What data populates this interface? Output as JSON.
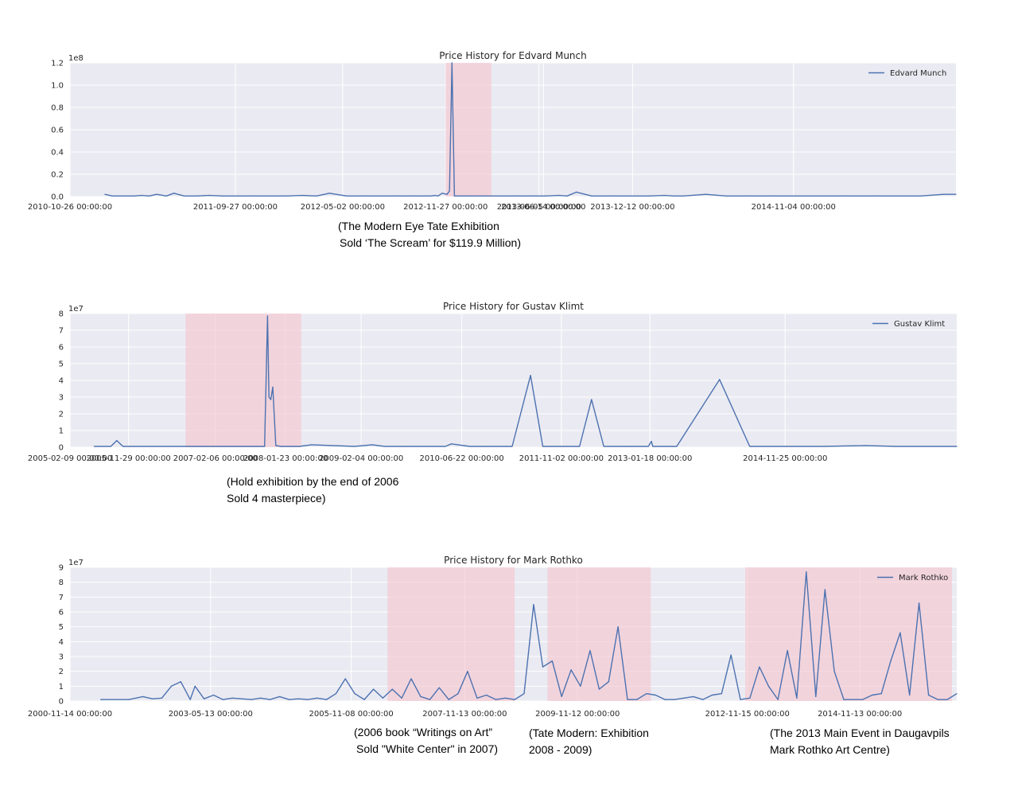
{
  "chart_data": [
    {
      "type": "line",
      "title": "Price History for Edvard Munch",
      "legend": "Edvard Munch",
      "legend_position": "top-right",
      "grid": true,
      "line_color": "#4c72b0",
      "highlight_color": "#f4c6d0",
      "ylim": [
        0,
        1.2
      ],
      "y_multiplier": "1e8",
      "yticks": [
        "0.0",
        "0.2",
        "0.4",
        "0.6",
        "0.8",
        "1.0",
        "1.2"
      ],
      "xlim": [
        "2010-10-26",
        "2015-09-30"
      ],
      "xticks": [
        {
          "date": "2010-10-26",
          "label": "2010-10-26 00:00:00"
        },
        {
          "date": "2011-09-27",
          "label": "2011-09-27 00:00:00"
        },
        {
          "date": "2012-05-02",
          "label": "2012-05-02 00:00:00"
        },
        {
          "date": "2012-11-27",
          "label": "2012-11-27 00:00:00"
        },
        {
          "date": "2013-06-05",
          "label": "2013-06-05 00:00:00"
        },
        {
          "date": "2013-06-14",
          "label": "2013-06-14 00:00:00"
        },
        {
          "date": "2013-12-12",
          "label": "2013-12-12 00:00:00"
        },
        {
          "date": "2014-11-04",
          "label": "2014-11-04 00:00:00"
        }
      ],
      "highlights": [
        [
          "2012-11-27",
          "2013-02-28"
        ]
      ],
      "series": [
        {
          "name": "Edvard Munch",
          "x": [
            "2011-01-05",
            "2011-01-20",
            "2011-02-10",
            "2011-03-05",
            "2011-03-20",
            "2011-04-05",
            "2011-04-20",
            "2011-05-10",
            "2011-05-25",
            "2011-06-15",
            "2011-07-10",
            "2011-08-05",
            "2011-09-01",
            "2011-10-01",
            "2011-11-05",
            "2011-12-10",
            "2012-01-10",
            "2012-02-10",
            "2012-03-10",
            "2012-04-05",
            "2012-05-10",
            "2012-06-15",
            "2012-07-20",
            "2012-08-20",
            "2012-09-20",
            "2012-10-15",
            "2012-10-30",
            "2012-11-05",
            "2012-11-12",
            "2012-11-20",
            "2012-11-30",
            "2012-12-05",
            "2012-12-10",
            "2012-12-15",
            "2012-12-20",
            "2013-01-10",
            "2013-02-10",
            "2013-03-15",
            "2013-04-15",
            "2013-05-20",
            "2013-06-20",
            "2013-07-15",
            "2013-08-01",
            "2013-08-20",
            "2013-09-20",
            "2013-10-25",
            "2013-11-25",
            "2014-01-15",
            "2014-02-15",
            "2014-03-05",
            "2014-03-25",
            "2014-05-10",
            "2014-06-20",
            "2014-08-10",
            "2014-09-20",
            "2014-11-01",
            "2014-12-20",
            "2015-02-10",
            "2015-04-20",
            "2015-06-10",
            "2015-07-20",
            "2015-09-05",
            "2015-09-30"
          ],
          "y": [
            0.02,
            0.005,
            0.005,
            0.005,
            0.01,
            0.005,
            0.02,
            0.005,
            0.03,
            0.005,
            0.005,
            0.01,
            0.005,
            0.005,
            0.005,
            0.005,
            0.005,
            0.01,
            0.005,
            0.03,
            0.005,
            0.005,
            0.005,
            0.005,
            0.005,
            0.005,
            0.005,
            0.01,
            0.005,
            0.03,
            0.02,
            0.05,
            1.2,
            0.005,
            0.005,
            0.005,
            0.005,
            0.005,
            0.005,
            0.005,
            0.005,
            0.01,
            0.005,
            0.04,
            0.005,
            0.005,
            0.005,
            0.005,
            0.01,
            0.005,
            0.005,
            0.02,
            0.005,
            0.005,
            0.005,
            0.005,
            0.005,
            0.005,
            0.005,
            0.005,
            0.005,
            0.02,
            0.02
          ]
        }
      ]
    },
    {
      "type": "line",
      "title": "Price History for Gustav Klimt",
      "legend": "Gustav Klimt",
      "legend_position": "top-right",
      "grid": true,
      "line_color": "#4c72b0",
      "highlight_color": "#f4c6d0",
      "ylim": [
        0,
        8
      ],
      "y_multiplier": "1e7",
      "yticks": [
        "0",
        "1",
        "2",
        "3",
        "4",
        "5",
        "6",
        "7",
        "8"
      ],
      "xlim": [
        "2005-02-09",
        "2017-04-01"
      ],
      "xticks": [
        {
          "date": "2005-02-09",
          "label": "2005-02-09 00:00:00"
        },
        {
          "date": "2005-11-29",
          "label": "2005-11-29 00:00:00"
        },
        {
          "date": "2007-02-06",
          "label": "2007-02-06 00:00:00"
        },
        {
          "date": "2008-01-23",
          "label": "2008-01-23 00:00:00"
        },
        {
          "date": "2009-02-04",
          "label": "2009-02-04 00:00:00"
        },
        {
          "date": "2010-06-22",
          "label": "2010-06-22 00:00:00"
        },
        {
          "date": "2011-11-02",
          "label": "2011-11-02 00:00:00"
        },
        {
          "date": "2013-01-18",
          "label": "2013-01-18 00:00:00"
        },
        {
          "date": "2014-11-25",
          "label": "2014-11-25 00:00:00"
        }
      ],
      "highlights": [
        [
          "2006-09-10",
          "2008-04-10"
        ]
      ],
      "series": [
        {
          "name": "Gustav Klimt",
          "x": [
            "2005-06-10",
            "2005-09-01",
            "2005-10-01",
            "2005-11-01",
            "2006-02-01",
            "2006-06-01",
            "2006-10-01",
            "2007-02-01",
            "2007-06-01",
            "2007-09-01",
            "2007-10-10",
            "2007-10-25",
            "2007-11-01",
            "2007-11-10",
            "2007-11-20",
            "2007-12-05",
            "2008-01-01",
            "2008-02-01",
            "2008-04-01",
            "2008-06-01",
            "2009-01-01",
            "2009-04-01",
            "2009-06-01",
            "2009-09-01",
            "2010-01-01",
            "2010-04-01",
            "2010-05-01",
            "2010-08-01",
            "2010-11-01",
            "2011-03-01",
            "2011-06-01",
            "2011-08-01",
            "2011-10-01",
            "2012-02-01",
            "2012-04-01",
            "2012-06-01",
            "2012-10-01",
            "2013-01-10",
            "2013-01-25",
            "2013-02-01",
            "2013-06-01",
            "2014-01-01",
            "2014-06-01",
            "2015-01-01",
            "2015-06-01",
            "2016-01-01",
            "2016-06-01",
            "2017-04-01"
          ],
          "y": [
            0.05,
            0.05,
            0.4,
            0.05,
            0.05,
            0.05,
            0.05,
            0.05,
            0.05,
            0.05,
            0.05,
            7.85,
            3.0,
            2.85,
            3.6,
            0.1,
            0.05,
            0.05,
            0.05,
            0.15,
            0.05,
            0.15,
            0.05,
            0.05,
            0.05,
            0.05,
            0.2,
            0.05,
            0.05,
            0.05,
            4.3,
            0.05,
            0.05,
            0.05,
            2.85,
            0.05,
            0.05,
            0.05,
            0.35,
            0.05,
            0.05,
            4.05,
            0.05,
            0.05,
            0.05,
            0.1,
            0.05,
            0.05
          ]
        }
      ]
    },
    {
      "type": "line",
      "title": "Price History for Mark Rothko",
      "legend": "Mark Rothko",
      "legend_position": "top-right",
      "grid": true,
      "line_color": "#4c72b0",
      "highlight_color": "#f4c6d0",
      "ylim": [
        0,
        9
      ],
      "y_multiplier": "1e7",
      "yticks": [
        "0",
        "1",
        "2",
        "3",
        "4",
        "5",
        "6",
        "7",
        "8",
        "9"
      ],
      "xlim": [
        "2000-11-14",
        "2016-08-01"
      ],
      "xticks": [
        {
          "date": "2000-11-14",
          "label": "2000-11-14 00:00:00"
        },
        {
          "date": "2003-05-13",
          "label": "2003-05-13 00:00:00"
        },
        {
          "date": "2005-11-08",
          "label": "2005-11-08 00:00:00"
        },
        {
          "date": "2007-11-13",
          "label": "2007-11-13 00:00:00"
        },
        {
          "date": "2009-11-12",
          "label": "2009-11-12 00:00:00"
        },
        {
          "date": "2012-11-15",
          "label": "2012-11-15 00:00:00"
        },
        {
          "date": "2014-11-13",
          "label": "2014-11-13 00:00:00"
        }
      ],
      "highlights": [
        [
          "2006-07-01",
          "2008-10-01"
        ],
        [
          "2009-05-01",
          "2011-03-01"
        ],
        [
          "2012-11-01",
          "2016-07-01"
        ]
      ],
      "series": [
        {
          "name": "Mark Rothko",
          "x": [
            "2001-06-01",
            "2001-12-01",
            "2002-03-01",
            "2002-05-01",
            "2002-07-01",
            "2002-09-01",
            "2002-11-01",
            "2003-01-01",
            "2003-02-01",
            "2003-04-01",
            "2003-06-01",
            "2003-08-01",
            "2003-10-01",
            "2003-12-01",
            "2004-02-01",
            "2004-04-01",
            "2004-06-01",
            "2004-08-01",
            "2004-10-01",
            "2004-12-01",
            "2005-02-01",
            "2005-04-01",
            "2005-06-01",
            "2005-08-01",
            "2005-10-01",
            "2005-12-01",
            "2006-02-01",
            "2006-04-01",
            "2006-06-01",
            "2006-08-01",
            "2006-10-01",
            "2006-12-01",
            "2007-02-01",
            "2007-04-01",
            "2007-06-01",
            "2007-08-01",
            "2007-10-01",
            "2007-12-01",
            "2008-02-01",
            "2008-04-01",
            "2008-06-01",
            "2008-08-01",
            "2008-10-01",
            "2008-12-01",
            "2009-02-01",
            "2009-04-01",
            "2009-06-01",
            "2009-08-01",
            "2009-10-01",
            "2009-12-01",
            "2010-02-01",
            "2010-04-01",
            "2010-06-01",
            "2010-08-01",
            "2010-10-01",
            "2010-12-01",
            "2011-02-01",
            "2011-04-01",
            "2011-06-01",
            "2011-08-01",
            "2011-10-01",
            "2011-12-01",
            "2012-02-01",
            "2012-04-01",
            "2012-06-01",
            "2012-08-01",
            "2012-10-01",
            "2012-12-01",
            "2013-02-01",
            "2013-04-01",
            "2013-06-01",
            "2013-08-01",
            "2013-10-01",
            "2013-12-01",
            "2014-02-01",
            "2014-04-01",
            "2014-06-01",
            "2014-08-01",
            "2014-10-01",
            "2014-12-01",
            "2015-02-01",
            "2015-04-01",
            "2015-06-01",
            "2015-08-01",
            "2015-10-01",
            "2015-12-01",
            "2016-02-01",
            "2016-04-01",
            "2016-06-01",
            "2016-08-01"
          ],
          "y": [
            0.1,
            0.1,
            0.3,
            0.15,
            0.2,
            1.0,
            1.3,
            0.1,
            1.0,
            0.15,
            0.4,
            0.1,
            0.2,
            0.15,
            0.1,
            0.2,
            0.1,
            0.3,
            0.1,
            0.15,
            0.1,
            0.2,
            0.1,
            0.5,
            1.5,
            0.5,
            0.1,
            0.8,
            0.2,
            0.8,
            0.2,
            1.5,
            0.3,
            0.1,
            0.9,
            0.1,
            0.5,
            2.0,
            0.2,
            0.4,
            0.1,
            0.2,
            0.1,
            0.5,
            6.5,
            2.3,
            2.7,
            0.3,
            2.1,
            1.0,
            3.4,
            0.8,
            1.3,
            5.0,
            0.1,
            0.1,
            0.5,
            0.4,
            0.1,
            0.1,
            0.2,
            0.3,
            0.1,
            0.4,
            0.5,
            3.1,
            0.1,
            0.2,
            2.3,
            1.0,
            0.1,
            3.4,
            0.2,
            8.7,
            0.3,
            7.5,
            2.0,
            0.1,
            0.1,
            0.1,
            0.4,
            0.5,
            2.7,
            4.6,
            0.4,
            6.6,
            0.4,
            0.1,
            0.1,
            0.5
          ]
        }
      ]
    }
  ],
  "annotations": [
    {
      "lines": [
        "(The Modern Eye Tate Exhibition",
        "Sold ‘The Scream’ for $119.9 Million)"
      ]
    },
    {
      "lines": [
        "(Hold exhibition by the end of 2006",
        "Sold 4 masterpiece)"
      ]
    },
    {
      "lines": [
        "(2006 book “Writings on Art”",
        "Sold \"White Center\" in 2007)"
      ]
    },
    {
      "lines": [
        "(Tate Modern: Exhibition",
        "2008 - 2009)"
      ]
    },
    {
      "lines": [
        "(The 2013 Main Event in Daugavpils",
        "Mark Rothko Art Centre)"
      ]
    }
  ]
}
